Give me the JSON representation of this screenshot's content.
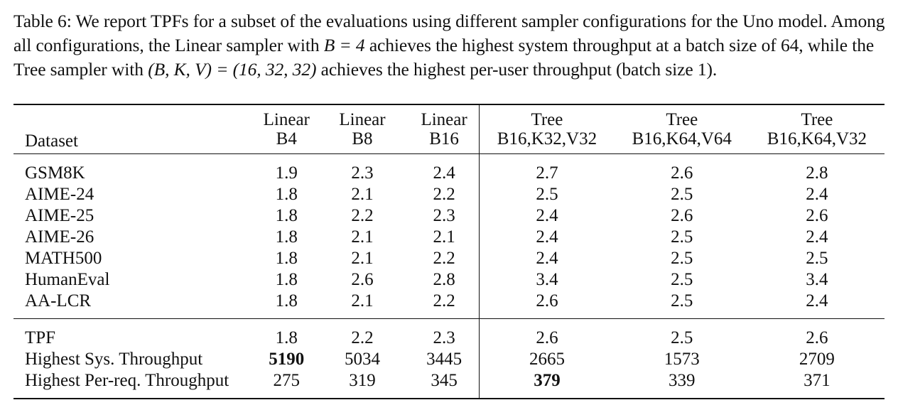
{
  "caption": {
    "prefix": "Table 6: We report TPFs for a subset of the evaluations using different sampler configurations for the Uno model. Among all configurations, the Linear sampler with ",
    "math1": "B = 4",
    "middle": " achieves the highest system throughput at a batch size of 64, while the Tree sampler with ",
    "math2": "(B, K, V) = (16, 32, 32)",
    "suffix": " achieves the highest per-user throughput (batch size 1)."
  },
  "table": {
    "headers": [
      {
        "line1": "",
        "line2": "Dataset"
      },
      {
        "line1": "Linear",
        "line2": "B4"
      },
      {
        "line1": "Linear",
        "line2": "B8"
      },
      {
        "line1": "Linear",
        "line2": "B16"
      },
      {
        "line1": "Tree",
        "line2": "B16,K32,V32"
      },
      {
        "line1": "Tree",
        "line2": "B16,K64,V64"
      },
      {
        "line1": "Tree",
        "line2": "B16,K64,V32"
      }
    ],
    "datasets": [
      {
        "name": "GSM8K",
        "values": [
          "1.9",
          "2.3",
          "2.4",
          "2.7",
          "2.6",
          "2.8"
        ]
      },
      {
        "name": "AIME-24",
        "values": [
          "1.8",
          "2.1",
          "2.2",
          "2.5",
          "2.5",
          "2.4"
        ]
      },
      {
        "name": "AIME-25",
        "values": [
          "1.8",
          "2.2",
          "2.3",
          "2.4",
          "2.6",
          "2.6"
        ]
      },
      {
        "name": "AIME-26",
        "values": [
          "1.8",
          "2.1",
          "2.1",
          "2.4",
          "2.5",
          "2.4"
        ]
      },
      {
        "name": "MATH500",
        "values": [
          "1.8",
          "2.1",
          "2.2",
          "2.4",
          "2.5",
          "2.5"
        ]
      },
      {
        "name": "HumanEval",
        "values": [
          "1.8",
          "2.6",
          "2.8",
          "3.4",
          "2.5",
          "3.4"
        ]
      },
      {
        "name": "AA-LCR",
        "values": [
          "1.8",
          "2.1",
          "2.2",
          "2.6",
          "2.5",
          "2.4"
        ]
      }
    ],
    "summary": [
      {
        "name": "TPF",
        "values": [
          "1.8",
          "2.2",
          "2.3",
          "2.6",
          "2.5",
          "2.6"
        ],
        "bold_index": -1
      },
      {
        "name": "Highest Sys. Throughput",
        "values": [
          "5190",
          "5034",
          "3445",
          "2665",
          "1573",
          "2709"
        ],
        "bold_index": 0
      },
      {
        "name": "Highest Per-req. Throughput",
        "values": [
          "275",
          "319",
          "345",
          "379",
          "339",
          "371"
        ],
        "bold_index": 3
      }
    ]
  }
}
